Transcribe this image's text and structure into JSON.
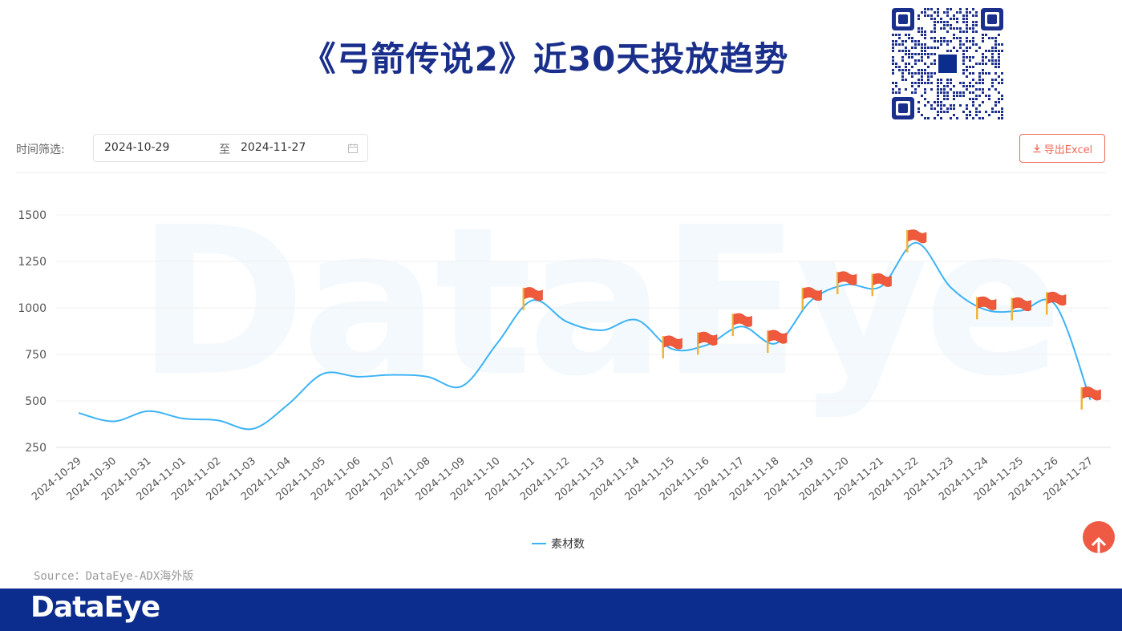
{
  "title": "《弓箭传说2》近30天投放趋势",
  "filter": {
    "label": "时间筛选:",
    "start": "2024-10-29",
    "separator": "至",
    "end": "2024-11-27"
  },
  "export_label": "导出Excel",
  "watermark": "DataEye",
  "source": "Source：DataEye-ADX海外版",
  "footer_brand": "DataEye",
  "colors": {
    "line": "#3bb3f5",
    "brand": "#0c2c8e",
    "accent": "#ee6b5a",
    "title": "#1a2f8c"
  },
  "chart_data": {
    "type": "line",
    "categories": [
      "2024-10-29",
      "2024-10-30",
      "2024-10-31",
      "2024-11-01",
      "2024-11-02",
      "2024-11-03",
      "2024-11-04",
      "2024-11-05",
      "2024-11-06",
      "2024-11-07",
      "2024-11-08",
      "2024-11-09",
      "2024-11-10",
      "2024-11-11",
      "2024-11-12",
      "2024-11-13",
      "2024-11-14",
      "2024-11-15",
      "2024-11-16",
      "2024-11-17",
      "2024-11-18",
      "2024-11-19",
      "2024-11-20",
      "2024-11-21",
      "2024-11-22",
      "2024-11-23",
      "2024-11-24",
      "2024-11-25",
      "2024-11-26",
      "2024-11-27"
    ],
    "series": [
      {
        "name": "素材数",
        "values": [
          435,
          390,
          445,
          405,
          395,
          350,
          480,
          645,
          630,
          640,
          630,
          580,
          810,
          1040,
          925,
          880,
          935,
          780,
          800,
          900,
          810,
          1040,
          1125,
          1115,
          1350,
          1110,
          990,
          985,
          1015,
          505
        ],
        "flagged": [
          13,
          17,
          18,
          19,
          20,
          21,
          22,
          23,
          24,
          26,
          27,
          28,
          29
        ]
      }
    ],
    "ylim": [
      250,
      1500
    ],
    "yticks": [
      250,
      500,
      750,
      1000,
      1250,
      1500
    ],
    "legend": "bottom-center",
    "grid": true
  }
}
